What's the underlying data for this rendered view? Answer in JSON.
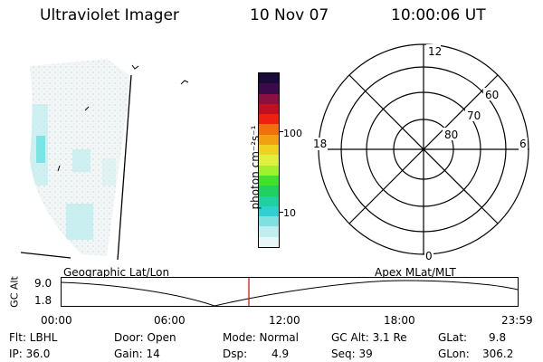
{
  "header": {
    "instrument": "Ultraviolet Imager",
    "date": "10 Nov 07",
    "time": "10:00:06 UT"
  },
  "colorbar": {
    "unit_label": "photon cm⁻²s⁻¹",
    "ticks": [
      "100",
      "10"
    ],
    "colors": [
      "#1a0a3a",
      "#3a0a4a",
      "#8a1040",
      "#c01020",
      "#f02010",
      "#f07010",
      "#f0a010",
      "#f0d020",
      "#e0f040",
      "#a0f030",
      "#40e030",
      "#20d060",
      "#20d0a0",
      "#30d0d0",
      "#80e0e0",
      "#c0eef0",
      "#e8f6f6"
    ]
  },
  "polar": {
    "labels": {
      "top": "12",
      "bottom": "0",
      "left": "18",
      "right": "6"
    },
    "lat_labels": [
      "60",
      "70",
      "80"
    ]
  },
  "timeline": {
    "left_title": "Geographic Lat/Lon",
    "right_title": "Apex  MLat/MLT",
    "axis_label": "GC Alt",
    "ytick_top": "9.0",
    "ytick_bottom": "1.8",
    "xticks": [
      "00:00",
      "06:00",
      "12:00",
      "18:00",
      "23:59"
    ],
    "marker_color": "#e00000"
  },
  "footer": {
    "flt": "Flt: LBHL",
    "ip": "IP: 36.0",
    "door": "Door: Open",
    "gain": "Gain: 14",
    "mode": "Mode: Normal",
    "dsp_label": "Dsp:",
    "dsp_value": "4.9",
    "gc_alt": "GC Alt: 3.1 Re",
    "seq": "Seq: 39",
    "glat_label": "GLat:",
    "glat_value": "9.8",
    "glon_label": "GLon:",
    "glon_value": "306.2"
  }
}
